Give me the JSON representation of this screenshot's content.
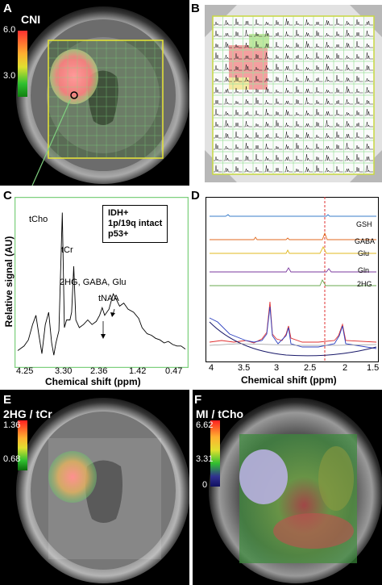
{
  "panels": {
    "a": {
      "letter": "A",
      "colorbar_title": "CNI",
      "max": "6.0",
      "mid": "3.0"
    },
    "b": {
      "letter": "B"
    },
    "c": {
      "letter": "C",
      "legend": [
        "IDH+",
        "1p/19q intact",
        "p53+"
      ],
      "peaks": {
        "tcho": "tCho",
        "tcr": "tCr",
        "hg": "2HG, GABA, Glu",
        "tnaa": "tNAA"
      },
      "ylabel": "Relative signal (AU)",
      "xlabel": "Chemical shift (ppm)",
      "xticks": [
        "4.25",
        "3.30",
        "2.36",
        "1.42",
        "0.47"
      ]
    },
    "d": {
      "letter": "D",
      "metabolites": [
        "GSH",
        "GABA",
        "Glu",
        "Gln",
        "2HG"
      ],
      "xlabel": "Chemical shift (ppm)",
      "xticks": [
        "4",
        "3.5",
        "3",
        "2.5",
        "2",
        "1.5"
      ]
    },
    "e": {
      "letter": "E",
      "colorbar_title": "2HG / tCr",
      "max": "1.36",
      "mid": "0.68"
    },
    "f": {
      "letter": "F",
      "colorbar_title": "MI / tCho",
      "max": "6.62",
      "mid": "3.31",
      "min": "0"
    }
  },
  "chart_data": [
    {
      "type": "line",
      "panel": "C",
      "xlabel": "Chemical shift (ppm)",
      "ylabel": "Relative signal (AU)",
      "xlim": [
        4.35,
        0.4
      ],
      "x_ticks": [
        4.25,
        3.3,
        2.36,
        1.42,
        0.47
      ],
      "series": [
        {
          "values": [
            [
              4.35,
              0.05
            ],
            [
              4.2,
              0.08
            ],
            [
              4.1,
              0.12
            ],
            [
              4.0,
              0.22
            ],
            [
              3.92,
              0.28
            ],
            [
              3.85,
              0.15
            ],
            [
              3.78,
              0.03
            ],
            [
              3.7,
              0.22
            ],
            [
              3.62,
              0.3
            ],
            [
              3.55,
              0.1
            ],
            [
              3.5,
              0.02
            ],
            [
              3.45,
              0.1
            ],
            [
              3.38,
              0.18
            ],
            [
              3.3,
              0.95
            ],
            [
              3.25,
              0.2
            ],
            [
              3.2,
              0.25
            ],
            [
              3.12,
              0.25
            ],
            [
              3.08,
              0.3
            ],
            [
              3.03,
              0.6
            ],
            [
              2.98,
              0.25
            ],
            [
              2.9,
              0.2
            ],
            [
              2.8,
              0.22
            ],
            [
              2.7,
              0.25
            ],
            [
              2.6,
              0.22
            ],
            [
              2.5,
              0.24
            ],
            [
              2.42,
              0.28
            ],
            [
              2.36,
              0.33
            ],
            [
              2.3,
              0.28
            ],
            [
              2.2,
              0.32
            ],
            [
              2.1,
              0.42
            ],
            [
              2.02,
              0.38
            ],
            [
              1.95,
              0.34
            ],
            [
              1.85,
              0.36
            ],
            [
              1.75,
              0.32
            ],
            [
              1.62,
              0.3
            ],
            [
              1.5,
              0.26
            ],
            [
              1.42,
              0.2
            ],
            [
              1.3,
              0.16
            ],
            [
              1.2,
              0.15
            ],
            [
              1.1,
              0.13
            ],
            [
              1.0,
              0.12
            ],
            [
              0.9,
              0.1
            ],
            [
              0.8,
              0.11
            ],
            [
              0.7,
              0.09
            ],
            [
              0.6,
              0.08
            ],
            [
              0.5,
              0.08
            ],
            [
              0.4,
              0.06
            ]
          ]
        }
      ]
    },
    {
      "type": "line",
      "panel": "D",
      "xlabel": "Chemical shift (ppm)",
      "xlim": [
        4.1,
        1.4
      ],
      "x_ticks": [
        4,
        3.5,
        3,
        2.5,
        2,
        1.5
      ],
      "dashed_line_ppm": 2.25,
      "series": [
        {
          "name": "GSH",
          "color": "#3a7dc9"
        },
        {
          "name": "GABA",
          "color": "#e06a1f"
        },
        {
          "name": "Glu",
          "color": "#e0b81f"
        },
        {
          "name": "Gln",
          "color": "#7b3a9e"
        },
        {
          "name": "2HG",
          "color": "#6aa84f"
        }
      ]
    }
  ]
}
